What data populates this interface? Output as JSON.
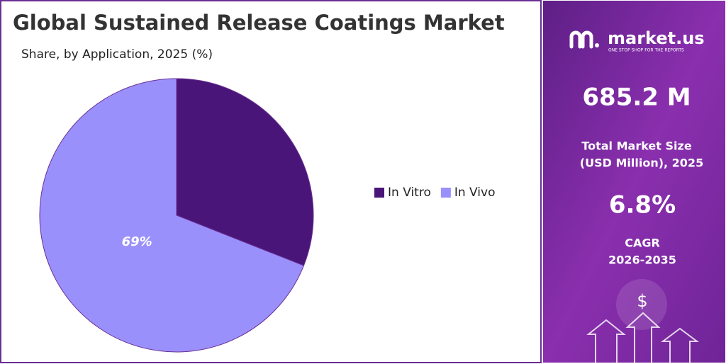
{
  "chart_data": {
    "type": "pie",
    "title": "Global Sustained Release Coatings Market",
    "subtitle": "Share, by Application, 2025 (%)",
    "categories": [
      "In Vitro",
      "In Vivo"
    ],
    "values": [
      31,
      69
    ],
    "value_labels": [
      null,
      "69%"
    ],
    "colors": [
      "#4a1578",
      "#9a90fb"
    ],
    "legend": "right"
  },
  "sidebar": {
    "brand": "market.us",
    "tagline": "ONE STOP SHOP FOR THE REPORTS",
    "market_size": "685.2 M",
    "market_size_label": [
      "Total Market Size",
      "(USD Million), 2025"
    ],
    "cagr": "6.8%",
    "cagr_label": [
      "CAGR",
      "2026-2035"
    ],
    "icon": "$"
  }
}
